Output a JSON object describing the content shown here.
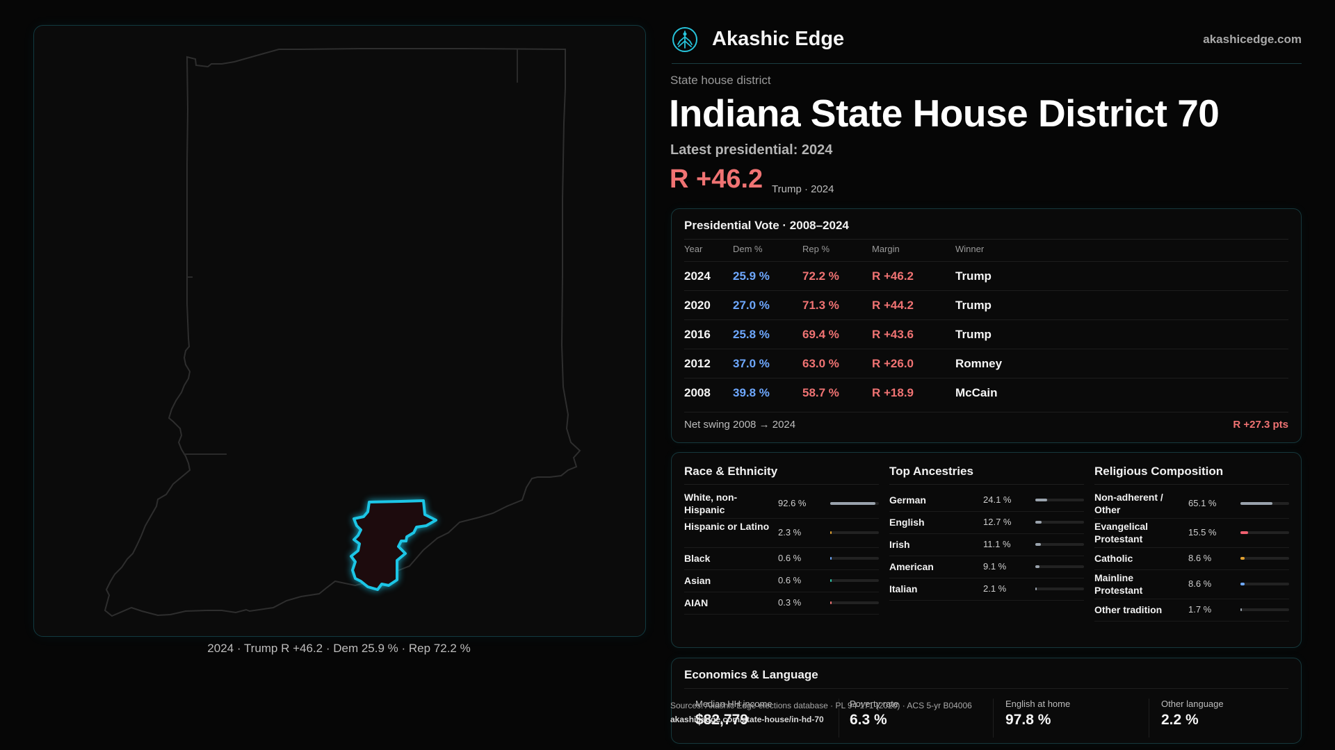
{
  "brand": {
    "name": "Akashic Edge",
    "url": "akashicedge.com",
    "logo_icon": "tree-logo-icon"
  },
  "district": {
    "kicker": "State house district",
    "title": "Indiana State House District 70",
    "latest_label": "Latest presidential: 2024",
    "margin": "R +46.2",
    "margin_sub": "Trump · 2024"
  },
  "map": {
    "caption": "2024 · Trump R +46.2 · Dem 25.9 % · Rep 72.2 %"
  },
  "presidential": {
    "title": "Presidential Vote · 2008–2024",
    "headers": {
      "year": "Year",
      "dem": "Dem %",
      "rep": "Rep %",
      "margin": "Margin",
      "winner": "Winner"
    },
    "rows": [
      {
        "year": "2024",
        "dem": "25.9 %",
        "rep": "72.2 %",
        "margin": "R +46.2",
        "winner": "Trump"
      },
      {
        "year": "2020",
        "dem": "27.0 %",
        "rep": "71.3 %",
        "margin": "R +44.2",
        "winner": "Trump"
      },
      {
        "year": "2016",
        "dem": "25.8 %",
        "rep": "69.4 %",
        "margin": "R +43.6",
        "winner": "Trump"
      },
      {
        "year": "2012",
        "dem": "37.0 %",
        "rep": "63.0 %",
        "margin": "R +26.0",
        "winner": "Romney"
      },
      {
        "year": "2008",
        "dem": "39.8 %",
        "rep": "58.7 %",
        "margin": "R +18.9",
        "winner": "McCain"
      }
    ],
    "swing_label": "Net swing 2008 → 2024",
    "swing_value": "R +27.3 pts"
  },
  "race": {
    "title": "Race & Ethnicity",
    "items": [
      {
        "label": "White, non-Hispanic",
        "pct": "92.6 %",
        "value": 92.6,
        "color": "#9aa3ad"
      },
      {
        "label": "Hispanic or Latino",
        "pct": "2.3 %",
        "value": 2.3,
        "color": "#e0a030"
      },
      {
        "label": "Black",
        "pct": "0.6 %",
        "value": 0.6,
        "color": "#6ea8ff"
      },
      {
        "label": "Asian",
        "pct": "0.6 %",
        "value": 0.6,
        "color": "#2dc6a8"
      },
      {
        "label": "AIAN",
        "pct": "0.3 %",
        "value": 0.3,
        "color": "#f07373"
      }
    ]
  },
  "ancestry": {
    "title": "Top Ancestries",
    "items": [
      {
        "label": "German",
        "pct": "24.1 %",
        "value": 24.1,
        "color": "#9aa3ad"
      },
      {
        "label": "English",
        "pct": "12.7 %",
        "value": 12.7,
        "color": "#9aa3ad"
      },
      {
        "label": "Irish",
        "pct": "11.1 %",
        "value": 11.1,
        "color": "#9aa3ad"
      },
      {
        "label": "American",
        "pct": "9.1 %",
        "value": 9.1,
        "color": "#9aa3ad"
      },
      {
        "label": "Italian",
        "pct": "2.1 %",
        "value": 2.1,
        "color": "#9aa3ad"
      }
    ]
  },
  "religion": {
    "title": "Religious Composition",
    "items": [
      {
        "label": "Non-adherent / Other",
        "pct": "65.1 %",
        "value": 65.1,
        "color": "#9aa3ad"
      },
      {
        "label": "Evangelical Protestant",
        "pct": "15.5 %",
        "value": 15.5,
        "color": "#f06070"
      },
      {
        "label": "Catholic",
        "pct": "8.6 %",
        "value": 8.6,
        "color": "#e0a030"
      },
      {
        "label": "Mainline Protestant",
        "pct": "8.6 %",
        "value": 8.6,
        "color": "#6ea8ff"
      },
      {
        "label": "Other tradition",
        "pct": "1.7 %",
        "value": 1.7,
        "color": "#9aa3ad"
      }
    ]
  },
  "economics": {
    "title": "Economics & Language",
    "cells": [
      {
        "label": "Median HH income",
        "value": "$82,779"
      },
      {
        "label": "Poverty rate",
        "value": "6.3 %"
      },
      {
        "label": "English at home",
        "value": "97.8 %"
      },
      {
        "label": "Other language",
        "value": "2.2 %"
      }
    ]
  },
  "source": {
    "line1": "Sources: Akashic Edge elections database · PL 94-171 (2020) · ACS 5-yr B04006",
    "line2": "akashicedge.com/state-house/in-hd-70"
  }
}
